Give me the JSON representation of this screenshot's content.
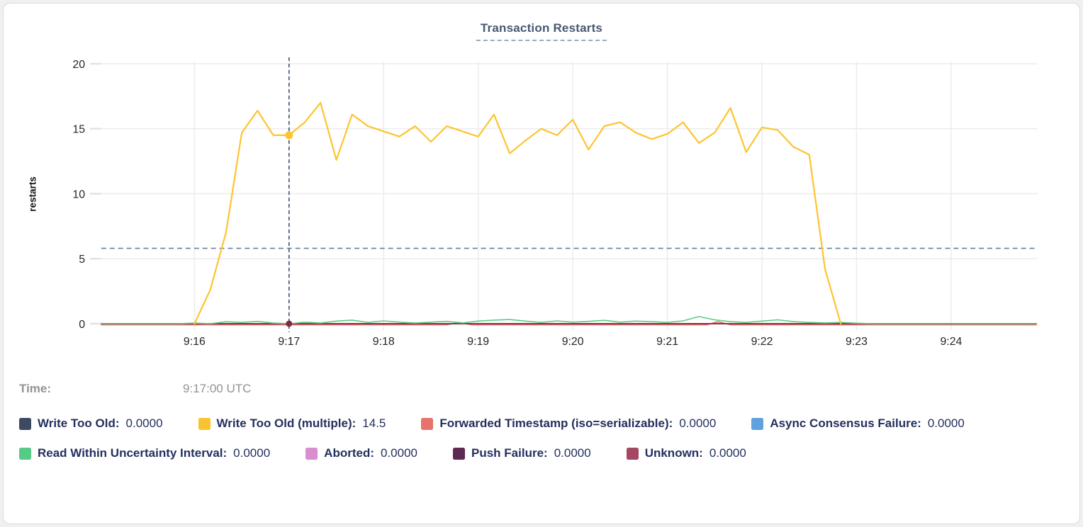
{
  "card": {
    "background": "#ffffff",
    "border_color": "#d8dbe0"
  },
  "title": "Transaction Restarts",
  "time_row": {
    "label": "Time:",
    "value": "9:17:00 UTC"
  },
  "legend": {
    "items": [
      {
        "label": "Write Too Old:",
        "value": "0.0000",
        "color": "#3d4a63"
      },
      {
        "label": "Write Too Old (multiple):",
        "value": "14.5",
        "color": "#f8c32e"
      },
      {
        "label": "Forwarded Timestamp (iso=serializable):",
        "value": "0.0000",
        "color": "#e8726c"
      },
      {
        "label": "Async Consensus Failure:",
        "value": "0.0000",
        "color": "#5ea1dd"
      },
      {
        "label": "Read Within Uncertainty Interval:",
        "value": "0.0000",
        "color": "#55cb85"
      },
      {
        "label": "Aborted:",
        "value": "0.0000",
        "color": "#d88ed0"
      },
      {
        "label": "Push Failure:",
        "value": "0.0000",
        "color": "#5e2a52"
      },
      {
        "label": "Unknown:",
        "value": "0.0000",
        "color": "#a54760"
      }
    ],
    "text_color": "#24305e"
  },
  "chart_data": {
    "type": "line",
    "title": "Transaction Restarts",
    "xlabel": "",
    "ylabel": "restarts",
    "ylim": [
      0,
      20
    ],
    "y_ticks": [
      0,
      5,
      10,
      15,
      20
    ],
    "x_ticks": [
      {
        "label": "9:16",
        "t": 960
      },
      {
        "label": "9:17",
        "t": 1020
      },
      {
        "label": "9:18",
        "t": 1080
      },
      {
        "label": "9:19",
        "t": 1140
      },
      {
        "label": "9:20",
        "t": 1200
      },
      {
        "label": "9:21",
        "t": 1260
      },
      {
        "label": "9:22",
        "t": 1320
      },
      {
        "label": "9:23",
        "t": 1380
      },
      {
        "label": "9:24",
        "t": 1440
      }
    ],
    "x_domain_seconds_since_9am": [
      901,
      1494
    ],
    "grid": true,
    "legend_position": "bottom",
    "threshold_line": {
      "value": 5.8,
      "style": "dashed",
      "color": "#64819f"
    },
    "hover": {
      "t": 1020,
      "time_label": "9:17:00 UTC",
      "line_color": "#3c4f6b",
      "dots": [
        {
          "series": "Write Too Old (multiple)",
          "value": 14.5,
          "color": "#fdc42e",
          "r": 5.5
        },
        {
          "series": "Unknown",
          "value": 0,
          "color": "#7e2c3e",
          "r": 4.5
        }
      ]
    },
    "series": [
      {
        "name": "Write Too Old",
        "color": "#3d4a63",
        "width": 1.6,
        "z": 1,
        "points": [
          [
            901,
            0
          ],
          [
            1494,
            0
          ]
        ]
      },
      {
        "name": "Write Too Old (multiple)",
        "color": "#fdc42e",
        "width": 2.2,
        "z": 8,
        "points": [
          [
            960,
            0
          ],
          [
            970,
            2.6
          ],
          [
            980,
            7
          ],
          [
            990,
            14.7
          ],
          [
            1000,
            16.4
          ],
          [
            1010,
            14.5
          ],
          [
            1020,
            14.5
          ],
          [
            1030,
            15.5
          ],
          [
            1040,
            17
          ],
          [
            1050,
            12.6
          ],
          [
            1060,
            16.1
          ],
          [
            1070,
            15.2
          ],
          [
            1080,
            14.8
          ],
          [
            1090,
            14.4
          ],
          [
            1100,
            15.2
          ],
          [
            1110,
            14
          ],
          [
            1120,
            15.2
          ],
          [
            1130,
            14.8
          ],
          [
            1140,
            14.4
          ],
          [
            1150,
            16.1
          ],
          [
            1160,
            13.1
          ],
          [
            1170,
            14.1
          ],
          [
            1180,
            15
          ],
          [
            1190,
            14.5
          ],
          [
            1200,
            15.7
          ],
          [
            1210,
            13.4
          ],
          [
            1220,
            15.2
          ],
          [
            1230,
            15.5
          ],
          [
            1240,
            14.7
          ],
          [
            1250,
            14.2
          ],
          [
            1260,
            14.6
          ],
          [
            1270,
            15.5
          ],
          [
            1280,
            13.9
          ],
          [
            1290,
            14.7
          ],
          [
            1300,
            16.6
          ],
          [
            1310,
            13.2
          ],
          [
            1320,
            15.1
          ],
          [
            1330,
            14.9
          ],
          [
            1340,
            13.6
          ],
          [
            1350,
            13
          ],
          [
            1360,
            4.2
          ],
          [
            1370,
            0
          ]
        ]
      },
      {
        "name": "Forwarded Timestamp (iso=serializable)",
        "color": "#e8726c",
        "width": 1.8,
        "z": 2,
        "points": [
          [
            901,
            -0.08
          ],
          [
            1120,
            -0.08
          ],
          [
            1128,
            0.1
          ],
          [
            1136,
            -0.08
          ],
          [
            1285,
            -0.08
          ],
          [
            1292,
            0.15
          ],
          [
            1300,
            -0.08
          ],
          [
            1494,
            -0.08
          ]
        ]
      },
      {
        "name": "Async Consensus Failure",
        "color": "#5ea1dd",
        "width": 1.6,
        "z": 3,
        "points": [
          [
            901,
            0
          ],
          [
            1494,
            0
          ]
        ]
      },
      {
        "name": "Read Within Uncertainty Interval",
        "color": "#5acc87",
        "width": 1.6,
        "z": 7,
        "points": [
          [
            901,
            0
          ],
          [
            950,
            0
          ],
          [
            960,
            0.05
          ],
          [
            970,
            0
          ],
          [
            980,
            0.15
          ],
          [
            990,
            0.1
          ],
          [
            1000,
            0.18
          ],
          [
            1010,
            0.05
          ],
          [
            1020,
            0
          ],
          [
            1030,
            0.12
          ],
          [
            1040,
            0.05
          ],
          [
            1050,
            0.2
          ],
          [
            1060,
            0.28
          ],
          [
            1070,
            0.1
          ],
          [
            1080,
            0.22
          ],
          [
            1090,
            0.12
          ],
          [
            1100,
            0.05
          ],
          [
            1110,
            0.12
          ],
          [
            1120,
            0.18
          ],
          [
            1130,
            0.06
          ],
          [
            1140,
            0.2
          ],
          [
            1150,
            0.28
          ],
          [
            1160,
            0.32
          ],
          [
            1170,
            0.2
          ],
          [
            1180,
            0.1
          ],
          [
            1190,
            0.22
          ],
          [
            1200,
            0.12
          ],
          [
            1210,
            0.18
          ],
          [
            1220,
            0.26
          ],
          [
            1230,
            0.12
          ],
          [
            1240,
            0.2
          ],
          [
            1250,
            0.16
          ],
          [
            1260,
            0.1
          ],
          [
            1270,
            0.22
          ],
          [
            1280,
            0.55
          ],
          [
            1290,
            0.3
          ],
          [
            1300,
            0.16
          ],
          [
            1310,
            0.1
          ],
          [
            1320,
            0.2
          ],
          [
            1330,
            0.3
          ],
          [
            1340,
            0.16
          ],
          [
            1350,
            0.1
          ],
          [
            1360,
            0.06
          ],
          [
            1370,
            0.1
          ],
          [
            1380,
            0.04
          ],
          [
            1390,
            0
          ],
          [
            1494,
            0
          ]
        ]
      },
      {
        "name": "Aborted",
        "color": "#d88ed0",
        "width": 1.6,
        "z": 4,
        "points": [
          [
            901,
            0
          ],
          [
            1494,
            0
          ]
        ]
      },
      {
        "name": "Push Failure",
        "color": "#5e2a52",
        "width": 1.6,
        "z": 5,
        "points": [
          [
            901,
            0
          ],
          [
            1494,
            0
          ]
        ]
      },
      {
        "name": "Unknown",
        "color": "#8e3247",
        "width": 2,
        "z": 6,
        "points": [
          [
            901,
            0
          ],
          [
            1494,
            0
          ]
        ]
      }
    ]
  }
}
